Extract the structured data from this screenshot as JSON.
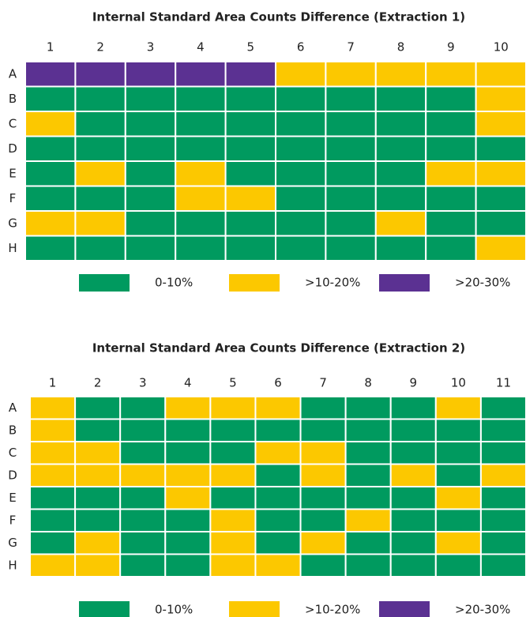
{
  "chart_data": [
    {
      "type": "heatmap",
      "title": "Internal Standard Area Counts Difference (Extraction 1)",
      "columns": [
        "1",
        "2",
        "3",
        "4",
        "5",
        "6",
        "7",
        "8",
        "9",
        "10"
      ],
      "rows": [
        "A",
        "B",
        "C",
        "D",
        "E",
        "F",
        "G",
        "H"
      ],
      "legend": [
        {
          "label": "0-10%",
          "color": "#009a5f"
        },
        {
          "label": ">10-20%",
          "color": "#fcc800"
        },
        {
          "label": ">20-30%",
          "color": "#5b3192"
        }
      ],
      "cells": [
        [
          2,
          2,
          2,
          2,
          2,
          1,
          1,
          1,
          1,
          1
        ],
        [
          0,
          0,
          0,
          0,
          0,
          0,
          0,
          0,
          0,
          1
        ],
        [
          1,
          0,
          0,
          0,
          0,
          0,
          0,
          0,
          0,
          1
        ],
        [
          0,
          0,
          0,
          0,
          0,
          0,
          0,
          0,
          0,
          0
        ],
        [
          0,
          1,
          0,
          1,
          0,
          0,
          0,
          0,
          1,
          1
        ],
        [
          0,
          0,
          0,
          1,
          1,
          0,
          0,
          0,
          0,
          0
        ],
        [
          1,
          1,
          0,
          0,
          0,
          0,
          0,
          1,
          0,
          0
        ],
        [
          0,
          0,
          0,
          0,
          0,
          0,
          0,
          0,
          0,
          1
        ]
      ]
    },
    {
      "type": "heatmap",
      "title": "Internal Standard Area Counts Difference (Extraction 2)",
      "columns": [
        "1",
        "2",
        "3",
        "4",
        "5",
        "6",
        "7",
        "8",
        "9",
        "10",
        "11"
      ],
      "rows": [
        "A",
        "B",
        "C",
        "D",
        "E",
        "F",
        "G",
        "H"
      ],
      "legend": [
        {
          "label": "0-10%",
          "color": "#009a5f"
        },
        {
          "label": ">10-20%",
          "color": "#fcc800"
        },
        {
          "label": ">20-30%",
          "color": "#5b3192"
        }
      ],
      "cells": [
        [
          1,
          0,
          0,
          1,
          1,
          1,
          0,
          0,
          0,
          1,
          0
        ],
        [
          1,
          0,
          0,
          0,
          0,
          0,
          0,
          0,
          0,
          0,
          0
        ],
        [
          1,
          1,
          0,
          0,
          0,
          1,
          1,
          0,
          0,
          0,
          0
        ],
        [
          1,
          1,
          1,
          1,
          1,
          0,
          1,
          0,
          1,
          0,
          1
        ],
        [
          0,
          0,
          0,
          1,
          0,
          0,
          0,
          0,
          0,
          1,
          0
        ],
        [
          0,
          0,
          0,
          0,
          1,
          0,
          0,
          1,
          0,
          0,
          0
        ],
        [
          0,
          1,
          0,
          0,
          1,
          0,
          1,
          0,
          0,
          1,
          0
        ],
        [
          1,
          1,
          0,
          0,
          1,
          1,
          0,
          0,
          0,
          0,
          0
        ]
      ]
    }
  ]
}
